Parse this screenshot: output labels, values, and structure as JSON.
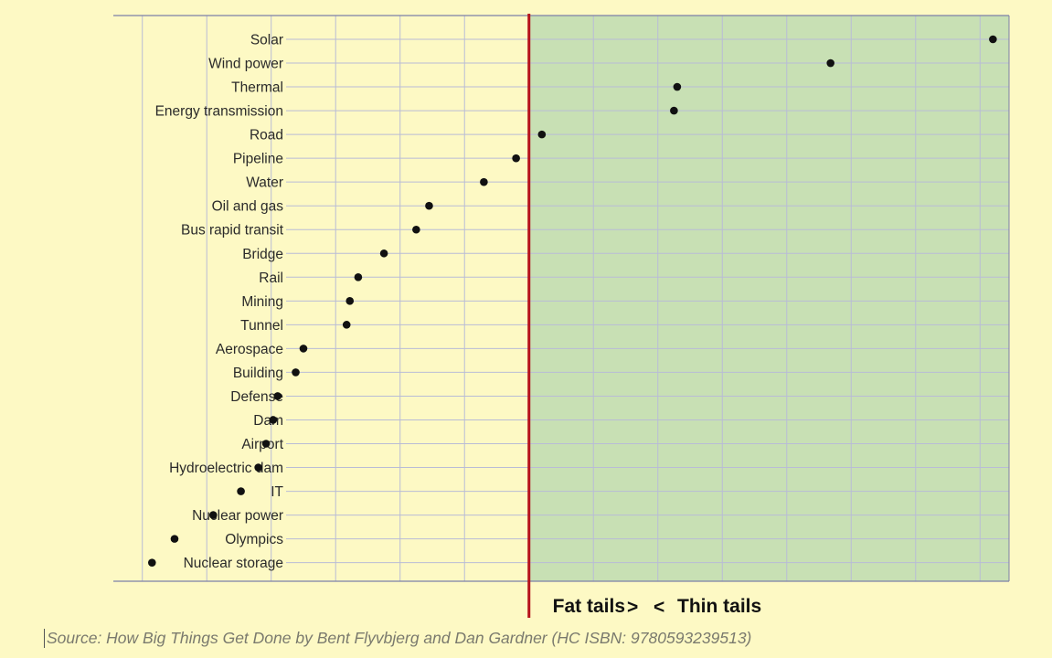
{
  "chart_data": {
    "type": "scatter",
    "categories": [
      "Solar",
      "Wind power",
      "Thermal",
      "Energy transmission",
      "Road",
      "Pipeline",
      "Water",
      "Oil and gas",
      "Bus rapid transit",
      "Bridge",
      "Rail",
      "Mining",
      "Tunnel",
      "Aerospace",
      "Building",
      "Defense",
      "Dam",
      "Airport",
      "Hydroelectric dam",
      "IT",
      "Nuclear power",
      "Olympics",
      "Nuclear storage"
    ],
    "values": [
      7.2,
      4.68,
      2.3,
      2.25,
      0.2,
      -0.2,
      -0.7,
      -1.55,
      -1.75,
      -2.25,
      -2.65,
      -2.78,
      -2.83,
      -3.5,
      -3.62,
      -3.9,
      -3.97,
      -4.08,
      -4.2,
      -4.47,
      -4.9,
      -5.5,
      -5.85
    ],
    "xlim": [
      -6.45,
      7.45
    ],
    "threshold": 0,
    "grid": true,
    "colors": {
      "background": "#fdf9c4",
      "thin_region": "#c8e0b4",
      "threshold_line": "#b5121b",
      "points": "#111111",
      "grid": "#b9bcd6"
    }
  },
  "labels": {
    "fat_tails": "Fat tails",
    "thin_tails": "Thin tails",
    "fat_arrow": ">",
    "thin_arrow": "<"
  },
  "source": "Source: How Big Things Get Done by Bent Flyvbjerg and Dan Gardner (HC ISBN: 9780593239513)"
}
